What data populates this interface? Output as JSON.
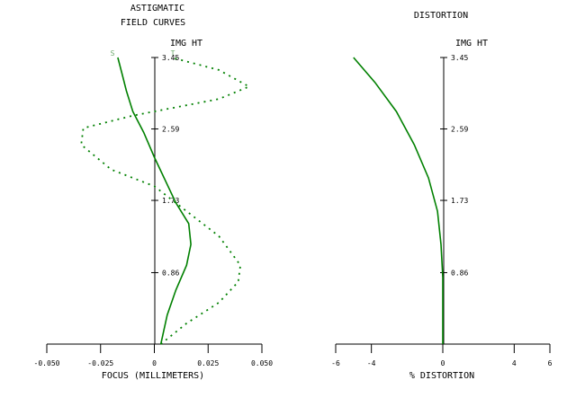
{
  "chart_data": [
    {
      "type": "line",
      "title": "ASTIGMATIC",
      "subtitle": "FIELD CURVES",
      "ylabel": "IMG HT",
      "xlabel": "FOCUS (MILLIMETERS)",
      "xlim": [
        -0.05,
        0.05
      ],
      "ylim": [
        0,
        3.45
      ],
      "x_ticks": [
        "-0.050",
        "-0.025",
        "0",
        "0.025",
        "0.050"
      ],
      "y_ticks": [
        "3.45",
        "2.59",
        "1.73",
        "0.86"
      ],
      "y_tick_values": [
        3.45,
        2.59,
        1.73,
        0.86
      ],
      "legend": [
        "S",
        "T"
      ],
      "color": "#008000",
      "series": [
        {
          "style": "solid",
          "legend_label": "S",
          "x": [
            0.003,
            0.006,
            0.01,
            0.015,
            0.017,
            0.016,
            0.01,
            0.0,
            -0.005,
            -0.01,
            -0.013,
            -0.015,
            -0.017
          ],
          "y": [
            0.0,
            0.35,
            0.65,
            0.95,
            1.2,
            1.45,
            1.7,
            2.25,
            2.55,
            2.8,
            3.05,
            3.25,
            3.45
          ]
        },
        {
          "style": "dashed",
          "legend_label": "T",
          "x": [
            0.003,
            0.015,
            0.03,
            0.039,
            0.04,
            0.03,
            0.015,
            0.0,
            -0.02,
            -0.034,
            -0.033,
            -0.01,
            0.03,
            0.044,
            0.03,
            0.008
          ],
          "y": [
            0.0,
            0.25,
            0.5,
            0.75,
            0.95,
            1.3,
            1.6,
            1.9,
            2.1,
            2.4,
            2.6,
            2.75,
            2.95,
            3.1,
            3.3,
            3.45
          ]
        }
      ]
    },
    {
      "type": "line",
      "title": "DISTORTION",
      "ylabel": "IMG HT",
      "xlabel": "% DISTORTION",
      "xlim": [
        -6,
        6
      ],
      "ylim": [
        0,
        3.45
      ],
      "x_ticks": [
        "-6",
        "-4",
        "0",
        "4",
        "6"
      ],
      "x_tick_values": [
        -6,
        -4,
        0,
        4,
        6
      ],
      "y_ticks": [
        "3.45",
        "2.59",
        "1.73",
        "0.86"
      ],
      "y_tick_values": [
        3.45,
        2.59,
        1.73,
        0.86
      ],
      "color": "#008000",
      "series": [
        {
          "style": "solid",
          "x": [
            0.0,
            0.0,
            -0.1,
            -0.3,
            -0.8,
            -1.6,
            -2.6,
            -3.8,
            -5.0
          ],
          "y": [
            0.0,
            0.8,
            1.2,
            1.6,
            2.0,
            2.4,
            2.8,
            3.15,
            3.45
          ]
        }
      ]
    }
  ]
}
